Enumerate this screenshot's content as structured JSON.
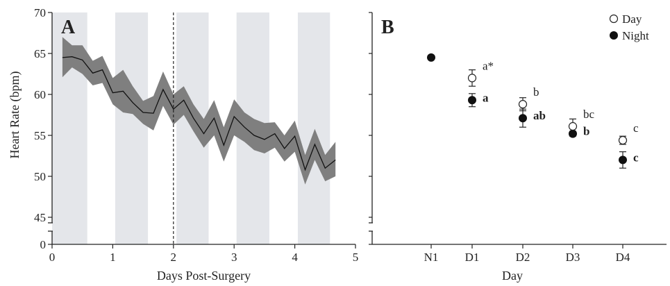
{
  "chart_data": [
    {
      "type": "line",
      "panel_label": "A",
      "xlabel": "Days Post-Surgery",
      "ylabel": "Heart Rate (bpm)",
      "xlim": [
        0,
        5
      ],
      "ylim": [
        45,
        70
      ],
      "axis_break": true,
      "xticks": [
        "0",
        "1",
        "2",
        "3",
        "4",
        "5"
      ],
      "yticks": [
        "0",
        "45",
        "50",
        "55",
        "60",
        "65",
        "70"
      ],
      "shaded_bands": [
        [
          0,
          0.58
        ],
        [
          1.04,
          1.58
        ],
        [
          2.05,
          2.58
        ],
        [
          3.04,
          3.58
        ],
        [
          4.05,
          4.58
        ]
      ],
      "band_color": "#e4e6ea",
      "vertical_marker_x": 2.0,
      "ribbon_color": "#7f7f7f",
      "line_color": "#111111",
      "series": [
        {
          "x": [
            0.17,
            0.33,
            0.5,
            0.67,
            0.83,
            1.0,
            1.17,
            1.33,
            1.5,
            1.67,
            1.83,
            2.0,
            2.17,
            2.33,
            2.5,
            2.67,
            2.83,
            3.0,
            3.17,
            3.33,
            3.5,
            3.67,
            3.83,
            4.0,
            4.17,
            4.33,
            4.5,
            4.67
          ],
          "y": [
            64.5,
            64.6,
            64.2,
            62.6,
            63.0,
            60.2,
            60.4,
            59.0,
            57.8,
            57.7,
            60.6,
            58.2,
            59.3,
            57.1,
            55.2,
            57.1,
            53.8,
            57.3,
            56.0,
            55.0,
            54.5,
            55.2,
            53.4,
            54.9,
            50.8,
            53.9,
            51.0,
            52.0
          ],
          "lower": [
            62.1,
            63.3,
            62.5,
            61.1,
            61.4,
            58.8,
            57.8,
            57.6,
            56.4,
            55.6,
            58.6,
            56.3,
            57.5,
            55.5,
            53.5,
            55.0,
            51.8,
            55.0,
            54.2,
            53.2,
            52.8,
            53.5,
            51.8,
            53.0,
            49.0,
            52.0,
            49.4,
            50.0
          ],
          "upper": [
            67.0,
            66.0,
            66.0,
            64.1,
            64.7,
            62.0,
            63.0,
            61.0,
            59.2,
            59.8,
            62.8,
            60.0,
            61.0,
            58.8,
            57.0,
            59.3,
            56.0,
            59.4,
            57.8,
            57.0,
            56.5,
            56.6,
            55.0,
            56.8,
            52.6,
            55.8,
            52.6,
            54.2
          ]
        }
      ]
    },
    {
      "type": "scatter",
      "panel_label": "B",
      "xlabel": "Day",
      "ylabel": "",
      "categories": [
        "N1",
        "D1",
        "D2",
        "D3",
        "D4"
      ],
      "ylim": [
        45,
        70
      ],
      "axis_break": true,
      "legend_position": "top-right",
      "series": [
        {
          "name": "Day",
          "marker": "open-circle",
          "values": [
            null,
            62.0,
            58.8,
            56.1,
            54.4
          ],
          "error": [
            null,
            1.0,
            0.8,
            0.9,
            0.5
          ],
          "annotations": [
            "",
            "a*",
            "b",
            "bc",
            "c"
          ]
        },
        {
          "name": "Night",
          "marker": "filled-circle",
          "values": [
            64.5,
            59.3,
            57.1,
            55.2,
            52.0
          ],
          "error": [
            0,
            0.8,
            1.1,
            0.3,
            1.0
          ],
          "annotations": [
            "",
            "a",
            "ab",
            "b",
            "c"
          ]
        }
      ]
    }
  ]
}
